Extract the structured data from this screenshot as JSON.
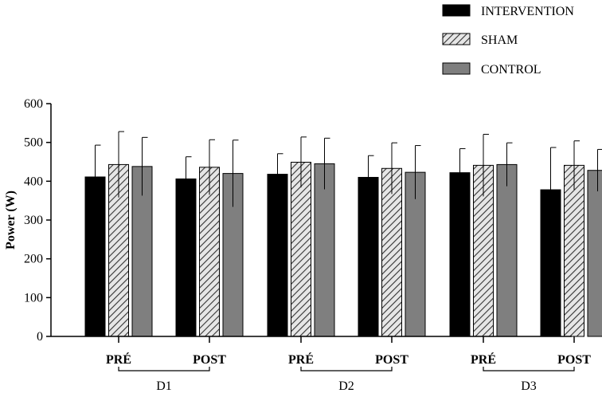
{
  "chart_data": {
    "type": "bar",
    "ylabel": "Power (W)",
    "xlabel": "",
    "title": "",
    "ylim": [
      0,
      600
    ],
    "yticks": [
      0,
      100,
      200,
      300,
      400,
      500,
      600
    ],
    "legend_position": "top-right",
    "grid": false,
    "categories": [
      "PRÉ",
      "POST",
      "PRÉ",
      "POST",
      "PRÉ",
      "POST"
    ],
    "groups": [
      {
        "label": "D1",
        "categories": [
          0,
          1
        ]
      },
      {
        "label": "D2",
        "categories": [
          2,
          3
        ]
      },
      {
        "label": "D3",
        "categories": [
          4,
          5
        ]
      }
    ],
    "series": [
      {
        "name": "INTERVENTION",
        "style": "solid",
        "color": "#000000",
        "values": [
          411,
          406,
          418,
          410,
          422,
          378
        ],
        "errors": [
          82,
          57,
          53,
          56,
          62,
          109
        ]
      },
      {
        "name": "SHAM",
        "style": "hatched",
        "color": "#d9d9d9",
        "values": [
          443,
          436,
          449,
          433,
          441,
          441
        ],
        "errors": [
          85,
          71,
          65,
          66,
          80,
          63
        ]
      },
      {
        "name": "CONTROL",
        "style": "solid",
        "color": "#7f7f7f",
        "values": [
          438,
          420,
          445,
          423,
          443,
          428
        ],
        "errors": [
          75,
          86,
          66,
          69,
          56,
          54
        ]
      }
    ]
  }
}
